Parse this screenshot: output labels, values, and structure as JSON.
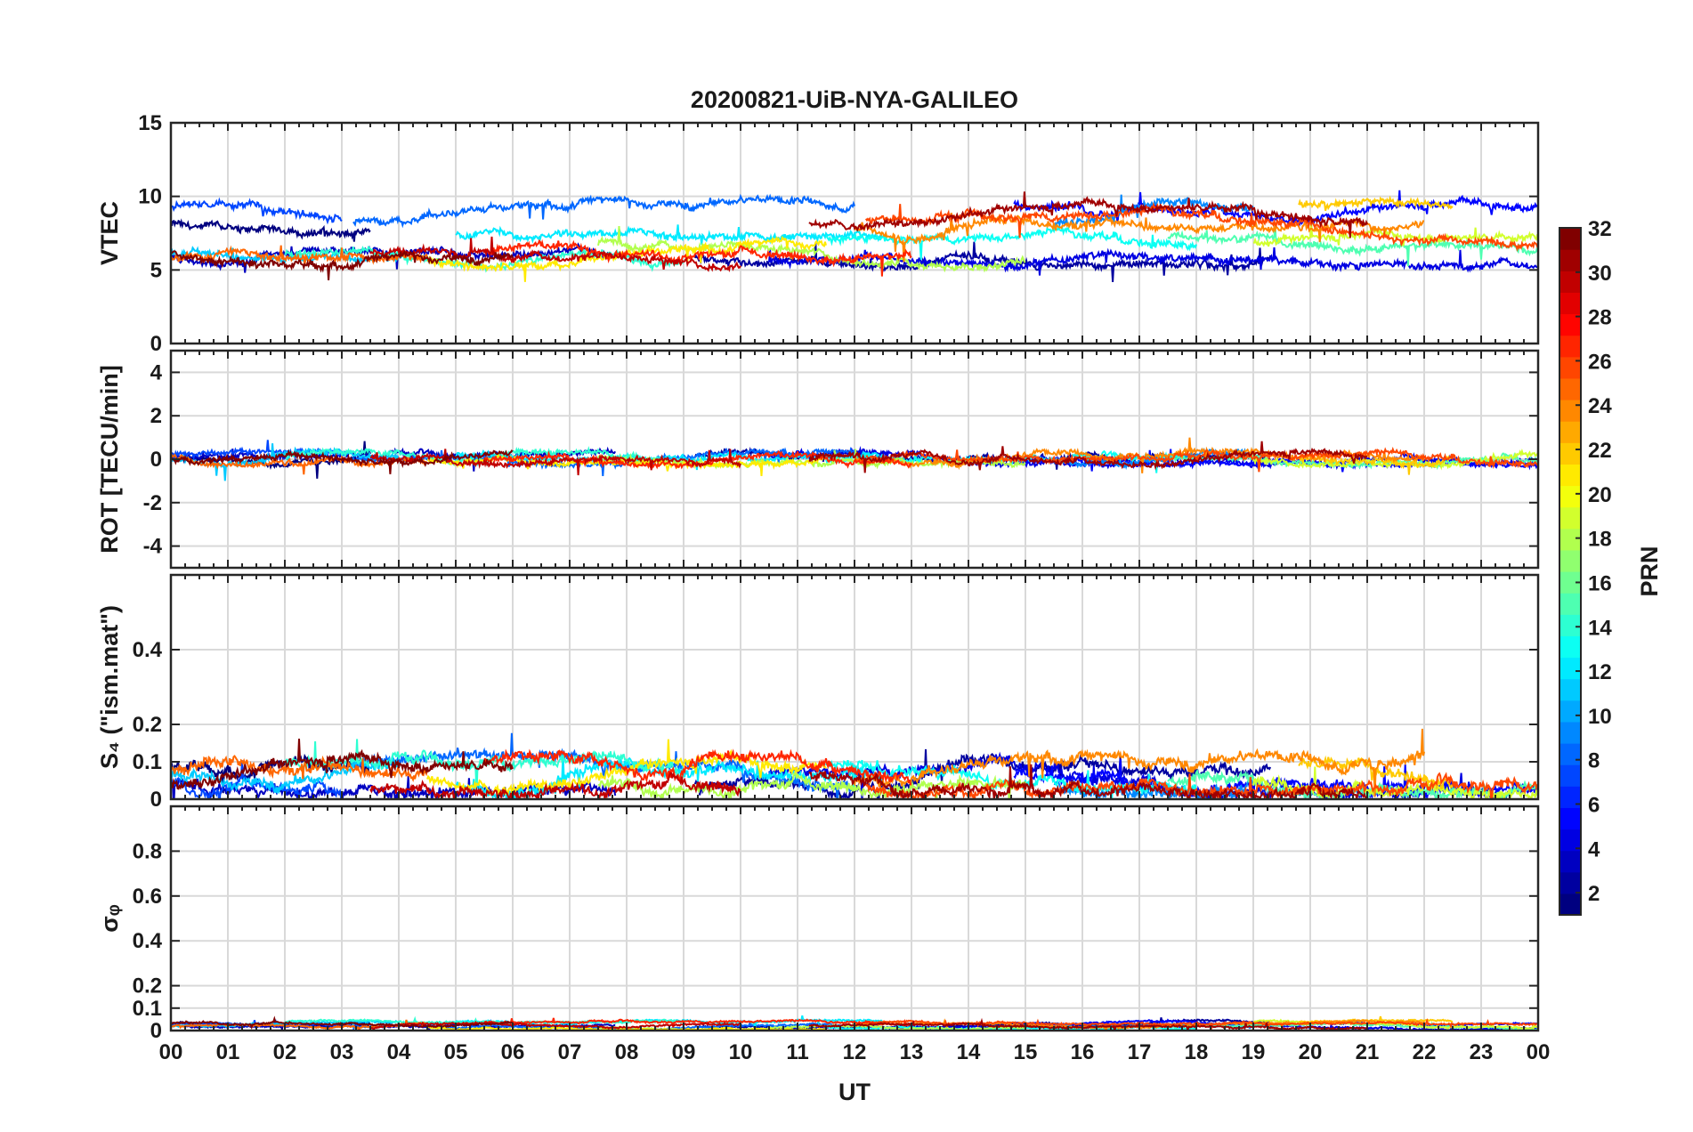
{
  "chart_data": {
    "type": "line",
    "title": "20200821-UiB-NYA-GALILEO",
    "xlabel": "UT",
    "x_ticks": [
      "00",
      "01",
      "02",
      "03",
      "04",
      "05",
      "06",
      "07",
      "08",
      "09",
      "10",
      "11",
      "12",
      "13",
      "14",
      "15",
      "16",
      "17",
      "18",
      "19",
      "20",
      "21",
      "22",
      "23",
      "00"
    ],
    "xlim": [
      0,
      24
    ],
    "grid": true,
    "colorbar": {
      "label": "PRN",
      "range": [
        1,
        32
      ],
      "ticks": [
        "2",
        "4",
        "6",
        "8",
        "10",
        "12",
        "14",
        "16",
        "18",
        "20",
        "22",
        "24",
        "26",
        "28",
        "30",
        "32"
      ],
      "colormap": "jet"
    },
    "panels": [
      {
        "ylabel": "VTEC",
        "ylim": [
          0,
          15
        ],
        "yticks": [
          "0",
          "5",
          "10",
          "15"
        ],
        "baseline": [
          5.5,
          9.5
        ],
        "noise": 0.35
      },
      {
        "ylabel": "ROT [TECU/min]",
        "ylim": [
          -5,
          5
        ],
        "yticks": [
          "-4",
          "-2",
          "0",
          "2",
          "4"
        ],
        "baseline": [
          -0.1,
          0.2
        ],
        "noise": 0.18
      },
      {
        "ylabel": "S₄ (\"ism.mat\")",
        "ylim": [
          0,
          0.6
        ],
        "yticks": [
          "0",
          "0.1",
          "0.2",
          "0.4"
        ],
        "baseline": [
          0.03,
          0.1
        ],
        "noise": 0.02
      },
      {
        "ylabel": "σᵩ",
        "ylim": [
          0,
          1
        ],
        "yticks": [
          "0",
          "0.1",
          "0.2",
          "0.4",
          "0.6",
          "0.8"
        ],
        "baseline": [
          0.01,
          0.04
        ],
        "noise": 0.006
      }
    ],
    "series": [
      {
        "prn": 1,
        "start": 0.0,
        "end": 3.5
      },
      {
        "prn": 2,
        "start": 9.2,
        "end": 19.3
      },
      {
        "prn": 3,
        "start": 0.0,
        "end": 7.8
      },
      {
        "prn": 4,
        "start": 10.5,
        "end": 24.0
      },
      {
        "prn": 5,
        "start": 14.8,
        "end": 24.0
      },
      {
        "prn": 7,
        "start": 0.0,
        "end": 3.0
      },
      {
        "prn": 8,
        "start": 3.2,
        "end": 12.0
      },
      {
        "prn": 9,
        "start": 15.5,
        "end": 19.0
      },
      {
        "prn": 11,
        "start": 0.0,
        "end": 4.0
      },
      {
        "prn": 12,
        "start": 5.0,
        "end": 12.5
      },
      {
        "prn": 13,
        "start": 11.5,
        "end": 18.0
      },
      {
        "prn": 14,
        "start": 2.0,
        "end": 9.0
      },
      {
        "prn": 15,
        "start": 17.5,
        "end": 24.0
      },
      {
        "prn": 18,
        "start": 7.5,
        "end": 15.0
      },
      {
        "prn": 19,
        "start": 19.0,
        "end": 24.0
      },
      {
        "prn": 21,
        "start": 4.5,
        "end": 11.5
      },
      {
        "prn": 22,
        "start": 19.8,
        "end": 22.5
      },
      {
        "prn": 24,
        "start": 12.0,
        "end": 22.0
      },
      {
        "prn": 25,
        "start": 0.0,
        "end": 4.5
      },
      {
        "prn": 26,
        "start": 12.2,
        "end": 24.0
      },
      {
        "prn": 27,
        "start": 5.5,
        "end": 13.0
      },
      {
        "prn": 30,
        "start": 3.5,
        "end": 10.0
      },
      {
        "prn": 31,
        "start": 11.2,
        "end": 21.0
      },
      {
        "prn": 32,
        "start": 0.0,
        "end": 6.0
      }
    ]
  }
}
